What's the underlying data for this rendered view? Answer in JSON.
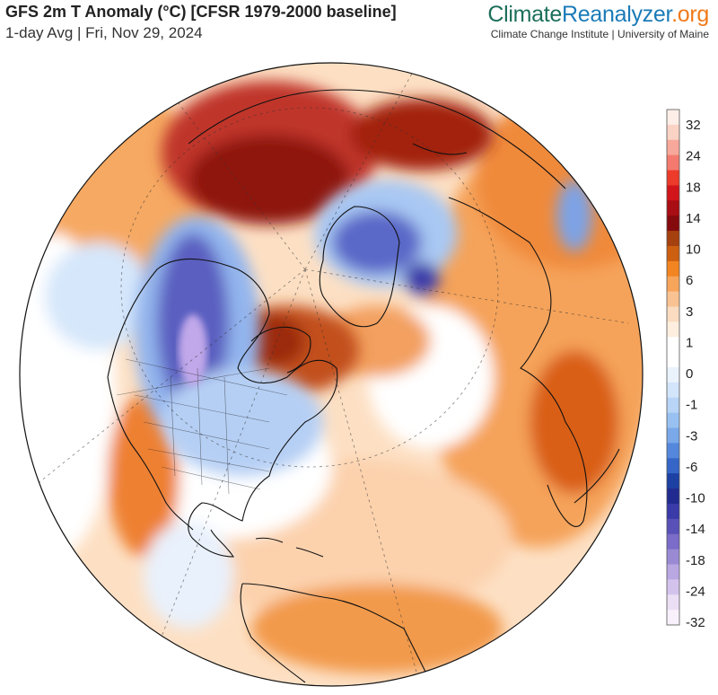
{
  "header": {
    "title": "GFS 2m T Anomaly (°C) [CFSR 1979-2000 baseline]",
    "subtitle": "1-day Avg | Fri, Nov 29, 2024"
  },
  "brand": {
    "part1": "Climate",
    "part2": "Reanalyzer",
    "part3": ".org",
    "tagline": "Climate Change Institute | University of Maine"
  },
  "legend": {
    "labels": [
      "32",
      "24",
      "18",
      "14",
      "10",
      "6",
      "3",
      "1",
      "0",
      "-1",
      "-3",
      "-6",
      "-10",
      "-14",
      "-18",
      "-24",
      "-32"
    ],
    "colors": [
      "#fdeee8",
      "#fbd3c4",
      "#f8a89a",
      "#f47a6f",
      "#ec3b2a",
      "#d1151a",
      "#a80e14",
      "#850a0e",
      "#a5400f",
      "#cc5f10",
      "#f28421",
      "#f6a55a",
      "#f9c293",
      "#fbdcc0",
      "#fdeedf",
      "#ffffff",
      "#ffffff",
      "#eaf2fc",
      "#d3e5fa",
      "#b8d4f6",
      "#98c1f1",
      "#7aa8e8",
      "#5588dd",
      "#3566c7",
      "#1d40a3",
      "#212b8f",
      "#3a3aa8",
      "#5951b8",
      "#7a6cc8",
      "#9a8ad4",
      "#b9a7e2",
      "#d3c3ec",
      "#ebdff5",
      "#f8f1fb"
    ]
  },
  "colors": {
    "ocean": "#ffffff",
    "warm": "#f7a860",
    "hot": "#b81c10",
    "cold": "#5a5fc0"
  }
}
